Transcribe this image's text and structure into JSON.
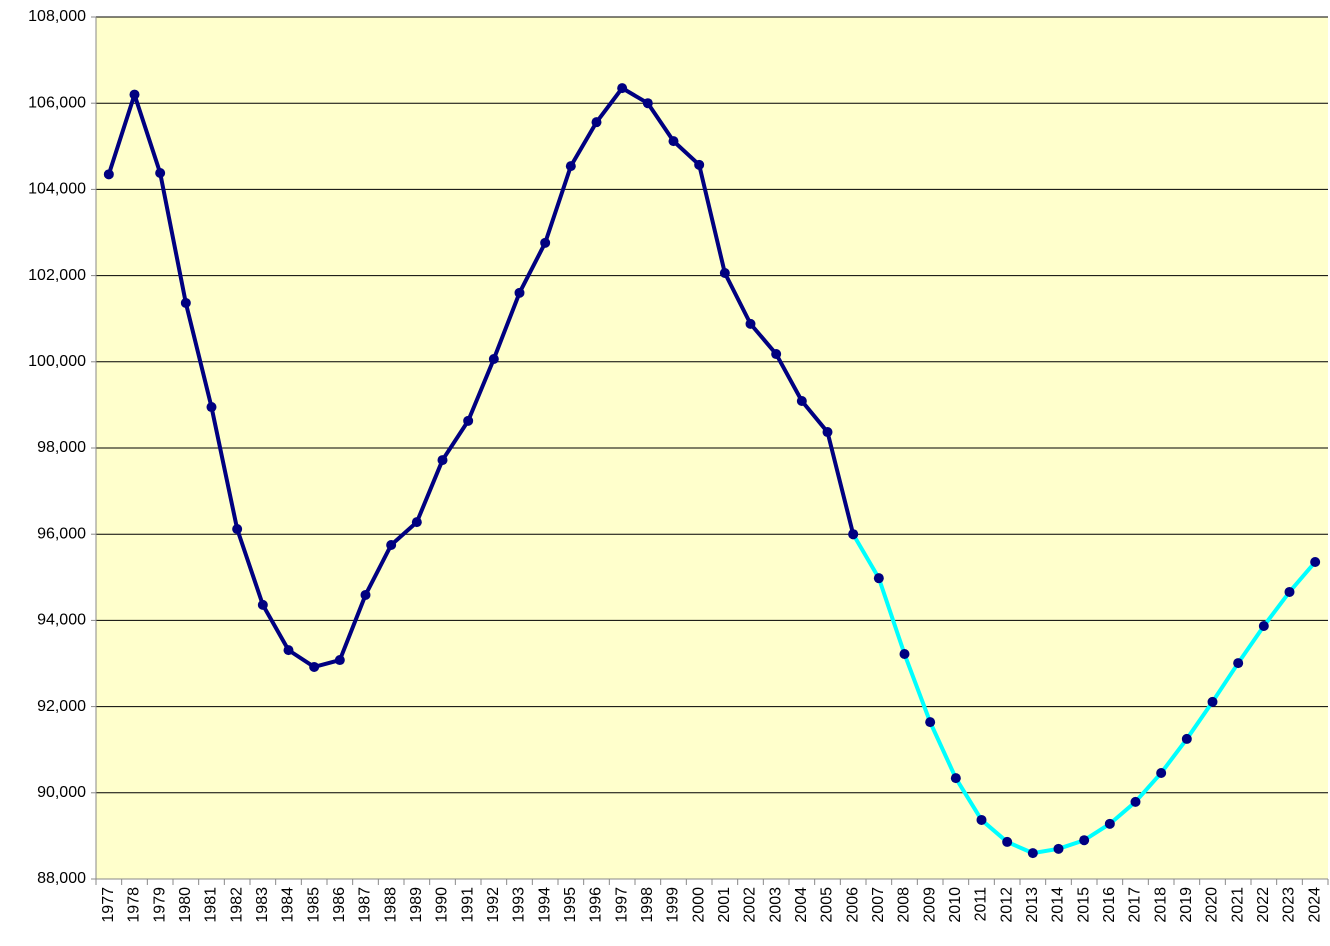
{
  "chart_data": {
    "type": "line",
    "categories": [
      "1977",
      "1978",
      "1979",
      "1980",
      "1981",
      "1982",
      "1983",
      "1984",
      "1985",
      "1986",
      "1987",
      "1988",
      "1989",
      "1990",
      "1991",
      "1992",
      "1993",
      "1994",
      "1995",
      "1996",
      "1997",
      "1998",
      "1999",
      "2000",
      "2001",
      "2002",
      "2003",
      "2004",
      "2005",
      "2006",
      "2007",
      "2008",
      "2009",
      "2010",
      "2011",
      "2012",
      "2013",
      "2014",
      "2015",
      "2016",
      "2017",
      "2018",
      "2019",
      "2020",
      "2021",
      "2022",
      "2023",
      "2024"
    ],
    "series": [
      {
        "color": "#000080",
        "values": [
          104350,
          106200,
          104380,
          101365,
          98950,
          96120,
          94360,
          93310,
          92920,
          93080,
          94590,
          95750,
          96280,
          97720,
          98630,
          100065,
          101600,
          102760,
          104540,
          105560,
          106350,
          106000,
          105120,
          104570,
          102060,
          100880,
          100180,
          99090,
          98370,
          96000,
          null,
          null,
          null,
          null,
          null,
          null,
          null,
          null,
          null,
          null,
          null,
          null,
          null,
          null,
          null,
          null,
          null,
          null
        ]
      },
      {
        "color": "#00FFFF",
        "values": [
          null,
          null,
          null,
          null,
          null,
          null,
          null,
          null,
          null,
          null,
          null,
          null,
          null,
          null,
          null,
          null,
          null,
          null,
          null,
          null,
          null,
          null,
          null,
          null,
          null,
          null,
          null,
          null,
          null,
          96000,
          94980,
          93220,
          91640,
          90340,
          89370,
          88860,
          88600,
          88700,
          88900,
          89280,
          89790,
          90460,
          91250,
          92110,
          93010,
          93870,
          94660,
          95355
        ]
      }
    ],
    "marker_color": "#000080",
    "background": "#FFFFCC",
    "grid": true,
    "ylim": [
      88000,
      108000
    ],
    "yticks": [
      {
        "value": 88000,
        "label": "88,000"
      },
      {
        "value": 90000,
        "label": "90,000"
      },
      {
        "value": 92000,
        "label": "92,000"
      },
      {
        "value": 94000,
        "label": "94,000"
      },
      {
        "value": 96000,
        "label": "96,000"
      },
      {
        "value": 98000,
        "label": "98,000"
      },
      {
        "value": 100000,
        "label": "100,000"
      },
      {
        "value": 102000,
        "label": "102,000"
      },
      {
        "value": 104000,
        "label": "104,000"
      },
      {
        "value": 106000,
        "label": "106,000"
      },
      {
        "value": 108000,
        "label": "108,000"
      }
    ]
  }
}
